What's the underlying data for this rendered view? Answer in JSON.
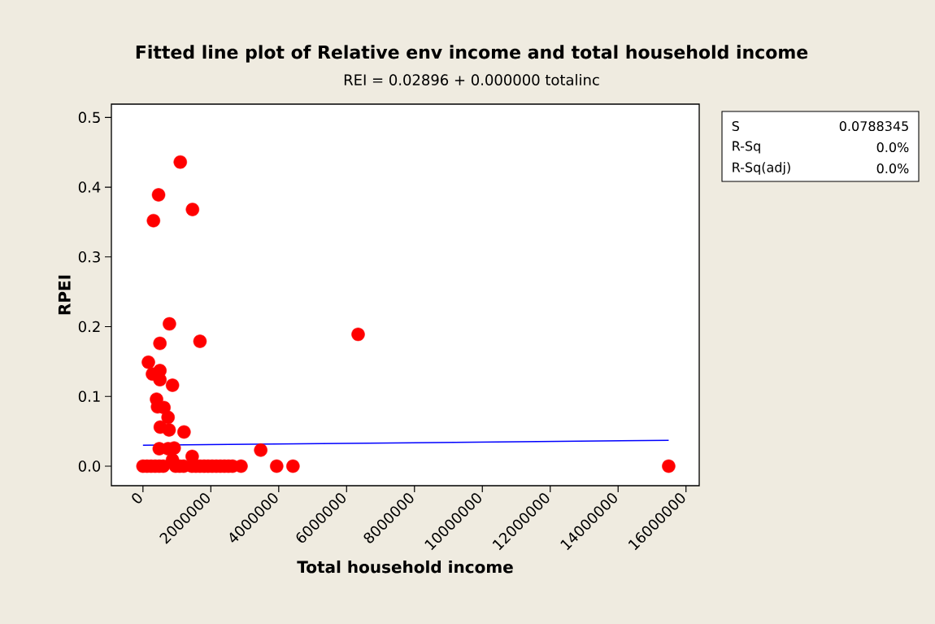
{
  "chart_data": {
    "type": "scatter",
    "title": "Fitted line plot of Relative env income and total household income",
    "subtitle": "REI =  0.02896 + 0.000000 totalinc",
    "xlabel": "Total household income",
    "ylabel": "RPEI",
    "annotations": [
      "S",
      "0.0788345",
      "R-Sq",
      "0.0%",
      "R-Sq(adj)",
      "0.0%"
    ],
    "xlim": [
      -930000,
      16390000
    ],
    "ylim": [
      -0.028,
      0.519
    ],
    "xticks": [
      0,
      2000000,
      4000000,
      6000000,
      8000000,
      10000000,
      12000000,
      14000000,
      16000000
    ],
    "yticks": [
      {
        "value": 0,
        "label": "0.0"
      },
      {
        "value": 0.1,
        "label": "0.1"
      },
      {
        "value": 0.2,
        "label": "0.2"
      },
      {
        "value": 0.3,
        "label": "0.3"
      },
      {
        "value": 0.4,
        "label": "0.4"
      },
      {
        "value": 0.5,
        "label": "0.5"
      }
    ],
    "series": [
      {
        "color": "#ff0000",
        "marker": "circle",
        "x": [
          1100000,
          460000,
          1460000,
          310000,
          780000,
          500000,
          1680000,
          6340000,
          160000,
          500000,
          280000,
          500000,
          870000,
          400000,
          430000,
          620000,
          740000,
          510000,
          770000,
          1210000,
          480000,
          740000,
          920000,
          3470000,
          1450000,
          870000,
          0,
          120000,
          240000,
          360000,
          480000,
          600000,
          960000,
          1080000,
          1200000,
          1440000,
          1560000,
          1680000,
          1800000,
          1920000,
          2040000,
          2160000,
          2280000,
          2400000,
          2520000,
          2640000,
          2890000,
          3940000,
          4420000,
          15490000
        ],
        "values": [
          0.436,
          0.389,
          0.368,
          0.352,
          0.204,
          0.176,
          0.179,
          0.189,
          0.149,
          0.137,
          0.132,
          0.124,
          0.116,
          0.096,
          0.085,
          0.084,
          0.07,
          0.056,
          0.052,
          0.049,
          0.025,
          0.025,
          0.026,
          0.023,
          0.014,
          0.009,
          0,
          0,
          0,
          0,
          0,
          0,
          0,
          0,
          0,
          0,
          0,
          0,
          0,
          0,
          0,
          0,
          0,
          0,
          0,
          0,
          0,
          0,
          0,
          0
        ]
      },
      {
        "type": "line",
        "color": "#0000ff",
        "line_style": "solid",
        "x": [
          0,
          15490000
        ],
        "values": [
          0.03,
          0.037
        ]
      }
    ]
  }
}
